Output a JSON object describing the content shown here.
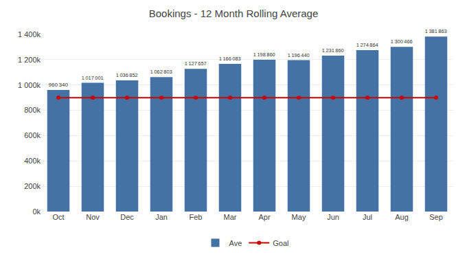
{
  "chart_data": {
    "type": "bar",
    "title": "Bookings - 12 Month Rolling Average",
    "categories": [
      "Oct",
      "Nov",
      "Dec",
      "Jan",
      "Feb",
      "Mar",
      "Apr",
      "May",
      "Jun",
      "Jul",
      "Aug",
      "Sep"
    ],
    "series": [
      {
        "name": "Ave",
        "type": "bar",
        "color": "#4472A4",
        "values": [
          960340,
          1017001,
          1036852,
          1062803,
          1127657,
          1166083,
          1198860,
          1196440,
          1231860,
          1274864,
          1300466,
          1381863
        ],
        "value_labels": [
          "960 340",
          "1 017 001",
          "1 036 852",
          "1 062 803",
          "1 127 657",
          "1 166 083",
          "1 198 860",
          "1 196 440",
          "1 231 860",
          "1 274 864",
          "1 300 466",
          "1 381 863"
        ]
      },
      {
        "name": "Goal",
        "type": "line",
        "color": "#cc0000",
        "marker": "circle",
        "line_style": "solid",
        "values": [
          900000,
          900000,
          900000,
          900000,
          900000,
          900000,
          900000,
          900000,
          900000,
          900000,
          900000,
          900000
        ]
      }
    ],
    "ylim": [
      0,
      1400000
    ],
    "yticks": [
      {
        "value": 0,
        "label": "0k"
      },
      {
        "value": 200000,
        "label": "200k"
      },
      {
        "value": 400000,
        "label": "400k"
      },
      {
        "value": 600000,
        "label": "600k"
      },
      {
        "value": 800000,
        "label": "800k"
      },
      {
        "value": 1000000,
        "label": "1 000k"
      },
      {
        "value": 1200000,
        "label": "1 200k"
      },
      {
        "value": 1400000,
        "label": "1 400k"
      }
    ],
    "grid": true,
    "data_labels": true,
    "legend": "bottom"
  }
}
